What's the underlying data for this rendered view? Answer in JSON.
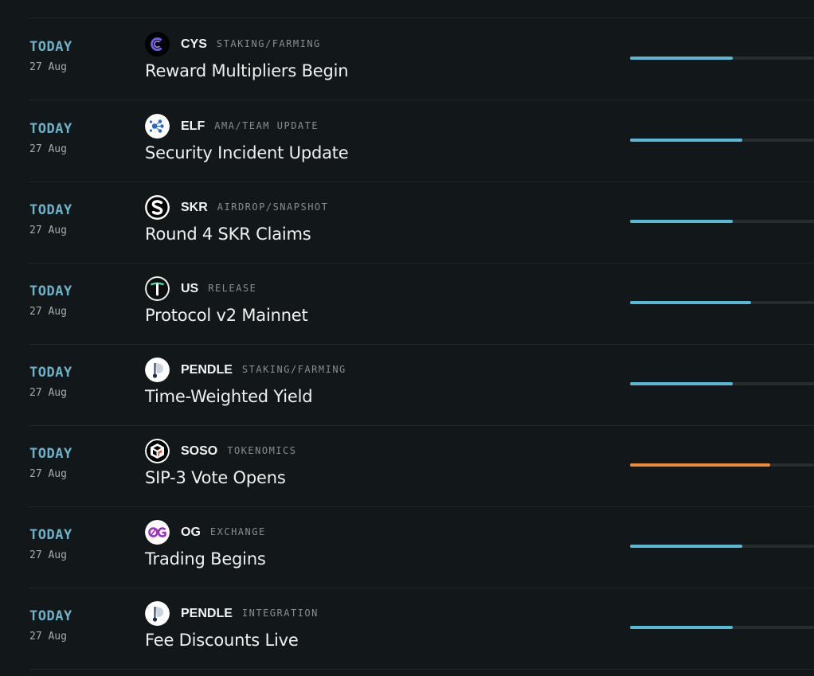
{
  "events": [
    {
      "day": "TODAY",
      "date": "27 Aug",
      "symbol": "CYS",
      "category": "STAKING/FARMING",
      "title": "Reward Multipliers Begin",
      "logo": "cys-logo-icon",
      "progress": 0.56,
      "color": "#5bb8d4"
    },
    {
      "day": "TODAY",
      "date": "27 Aug",
      "symbol": "ELF",
      "category": "AMA/TEAM UPDATE",
      "title": "Security Incident Update",
      "logo": "elf-logo-icon",
      "progress": 0.61,
      "color": "#5bb8d4"
    },
    {
      "day": "TODAY",
      "date": "27 Aug",
      "symbol": "SKR",
      "category": "AIRDROP/SNAPSHOT",
      "title": "Round 4 SKR Claims",
      "logo": "skr-logo-icon",
      "progress": 0.56,
      "color": "#5bb8d4"
    },
    {
      "day": "TODAY",
      "date": "27 Aug",
      "symbol": "US",
      "category": "RELEASE",
      "title": "Protocol v2 Mainnet",
      "logo": "us-logo-icon",
      "progress": 0.66,
      "color": "#5bb8d4"
    },
    {
      "day": "TODAY",
      "date": "27 Aug",
      "symbol": "PENDLE",
      "category": "STAKING/FARMING",
      "title": "Time-Weighted Yield",
      "logo": "pendle-logo-icon",
      "progress": 0.56,
      "color": "#5bb8d4"
    },
    {
      "day": "TODAY",
      "date": "27 Aug",
      "symbol": "SOSO",
      "category": "TOKENOMICS",
      "title": "SIP-3 Vote Opens",
      "logo": "soso-logo-icon",
      "progress": 0.76,
      "color": "#ef8b3b"
    },
    {
      "day": "TODAY",
      "date": "27 Aug",
      "symbol": "OG",
      "category": "EXCHANGE",
      "title": "Trading Begins",
      "logo": "og-logo-icon",
      "progress": 0.61,
      "color": "#5bb8d4"
    },
    {
      "day": "TODAY",
      "date": "27 Aug",
      "symbol": "PENDLE",
      "category": "INTEGRATION",
      "title": "Fee Discounts Live",
      "logo": "pendle-logo-icon",
      "progress": 0.56,
      "color": "#5bb8d4"
    }
  ]
}
